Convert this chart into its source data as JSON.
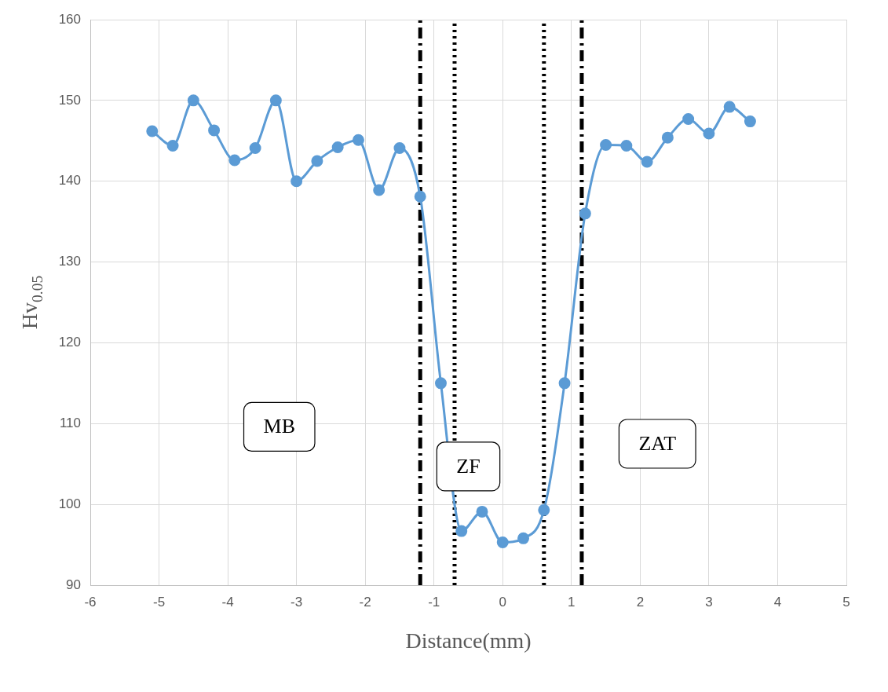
{
  "chart_data": {
    "type": "line",
    "xlabel": "Distance(mm)",
    "ylabel": "Hv$_{0.05}$",
    "x": [
      -5.1,
      -4.8,
      -4.5,
      -4.2,
      -3.9,
      -3.6,
      -3.3,
      -3.0,
      -2.7,
      -2.4,
      -2.1,
      -1.8,
      -1.5,
      -1.2,
      -0.9,
      -0.6,
      -0.3,
      0,
      0.3,
      0.6,
      0.9,
      1.2,
      1.5,
      1.8,
      2.1,
      2.4,
      2.7,
      3.0,
      3.3,
      3.6
    ],
    "series": [
      {
        "color": "#5b9bd5",
        "values": [
          146.2,
          144.4,
          150,
          146.3,
          142.6,
          144.1,
          150,
          140,
          142.5,
          144.2,
          145.1,
          138.9,
          144.1,
          138.1,
          115,
          96.7,
          99.1,
          95.3,
          95.8,
          99.3,
          115,
          136,
          144.5,
          144.4,
          142.4,
          145.4,
          147.7,
          145.9,
          149.2,
          147.4
        ]
      }
    ],
    "xlim": [
      -6,
      5
    ],
    "xticks": [
      -6,
      -5,
      -4,
      -3,
      -2,
      -1,
      0,
      1,
      2,
      3,
      4,
      5
    ],
    "ylim": [
      90,
      160
    ],
    "yticks": [
      90,
      100,
      110,
      120,
      130,
      140,
      150,
      160
    ],
    "grid": true,
    "legend": false,
    "marker": "circle",
    "line_style": "solid",
    "ref_lines": [
      {
        "axis": "x",
        "value": -1.2,
        "color": "#000000",
        "line_style": "dashed"
      },
      {
        "axis": "x",
        "value": -0.7,
        "color": "#000000",
        "line_style": "dotted"
      },
      {
        "axis": "x",
        "value": 0.6,
        "color": "#000000",
        "line_style": "dotted"
      },
      {
        "axis": "x",
        "value": 1.15,
        "color": "#000000",
        "line_style": "dashed"
      }
    ],
    "annotations": [
      "MB",
      "ZF",
      "ZAT"
    ]
  }
}
